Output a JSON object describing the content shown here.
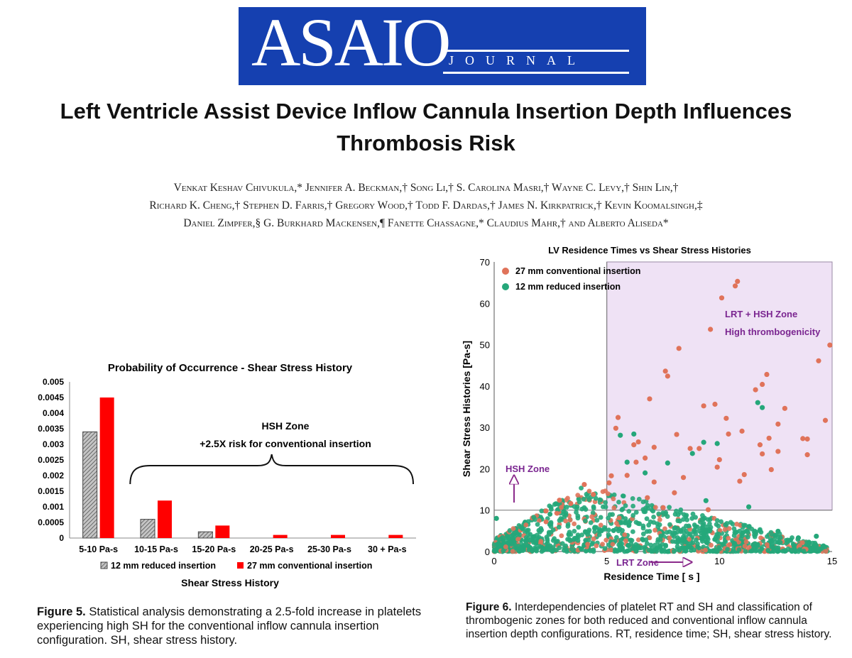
{
  "journal": {
    "logo_main": "ASAIO",
    "logo_sub": "JOURNAL"
  },
  "paper": {
    "title": "Left Ventricle Assist Device Inflow Cannula Insertion Depth Influences Thrombosis Risk",
    "authors": [
      "Venkat Keshav Chivukula,* Jennifer A. Beckman,† Song Li,† S. Carolina Masri,† Wayne C. Levy,† Shin Lin,†",
      "Richard K. Cheng,† Stephen D. Farris,† Gregory Wood,† Todd F. Dardas,† James N. Kirkpatrick,† Kevin Koomalsingh,‡",
      "Daniel Zimpfer,§ G. Burkhard Mackensen,¶ Fanette Chassagne,* Claudius Mahr,† and Alberto Aliseda*"
    ]
  },
  "figure5": {
    "caption_label": "Figure 5.",
    "caption_text": "Statistical analysis demonstrating a 2.5-fold increase in platelets experiencing high SH for the conventional inflow cannula insertion configuration. SH, shear stress history."
  },
  "figure6": {
    "caption_label": "Figure 6.",
    "caption_text": "Interdependencies of platelet RT and SH and classification of thrombogenic zones for both reduced and conventional inflow cannula insertion depth configurations. RT, residence time; SH, shear stress history."
  },
  "chart_data": [
    {
      "type": "bar",
      "title": "Probability of Occurrence - Shear Stress History",
      "xlabel": "Shear Stress History",
      "ylabel": "",
      "categories": [
        "5-10 Pa-s",
        "10-15 Pa-s",
        "15-20 Pa-s",
        "20-25 Pa-s",
        "25-30 Pa-s",
        "30 + Pa-s"
      ],
      "series": [
        {
          "name": "12 mm reduced insertion",
          "values": [
            0.0034,
            0.0006,
            0.0002,
            0,
            0,
            0
          ],
          "color": "#a8a8a8",
          "pattern": "diagonal-hatch"
        },
        {
          "name": "27 mm conventional insertion",
          "values": [
            0.0045,
            0.0012,
            0.0004,
            0.0001,
            0.0001,
            0.0001
          ],
          "color": "#ff0000"
        }
      ],
      "ylim": [
        0,
        0.005
      ],
      "yticks": [
        "0",
        "0.0005",
        "0.001",
        "0.0015",
        "0.002",
        "0.0025",
        "0.003",
        "0.0035",
        "0.004",
        "0.0045",
        "0.005"
      ],
      "legend_position": "bottom",
      "grid": false,
      "annotations": {
        "zone_title": "HSH Zone",
        "zone_text": "+2.5X risk for conventional insertion",
        "brace_span": [
          "10-15 Pa-s",
          "30 + Pa-s"
        ]
      }
    },
    {
      "type": "scatter",
      "title": "LV Residence Times vs Shear Stress Histories",
      "xlabel": "Residence Time [ s ]",
      "ylabel": "Shear Stress Histories [Pa-s]",
      "xlim": [
        0,
        15
      ],
      "ylim": [
        0,
        70
      ],
      "xticks": [
        0,
        5,
        10,
        15
      ],
      "yticks": [
        0,
        10,
        20,
        30,
        40,
        50,
        60,
        70
      ],
      "grid": false,
      "legend_position": "top-left",
      "series": [
        {
          "name": "27 mm conventional insertion",
          "color": "#e0735a",
          "points": [
            [
              10.8,
              65.3
            ],
            [
              10.7,
              64.2
            ],
            [
              10.1,
              61.3
            ],
            [
              14.9,
              49.9
            ],
            [
              9.6,
              53.7
            ],
            [
              8.2,
              49.1
            ],
            [
              14.4,
              46.1
            ],
            [
              7.6,
              43.6
            ],
            [
              7.7,
              42.4
            ],
            [
              6.9,
              36.9
            ],
            [
              12.1,
              42.8
            ],
            [
              11.6,
              39.1
            ],
            [
              11.9,
              40.4
            ],
            [
              12.9,
              34.6
            ],
            [
              9.8,
              35.6
            ],
            [
              9.3,
              35.2
            ],
            [
              10.3,
              32.2
            ],
            [
              12.6,
              30.8
            ],
            [
              11.0,
              29.1
            ],
            [
              8.1,
              28.3
            ],
            [
              6.4,
              26.5
            ],
            [
              6.2,
              25.8
            ],
            [
              5.5,
              32.4
            ],
            [
              5.4,
              29.8
            ],
            [
              7.1,
              25.2
            ],
            [
              12.2,
              27.4
            ],
            [
              13.7,
              27.3
            ],
            [
              10.4,
              28.4
            ],
            [
              11.8,
              25.8
            ],
            [
              14.7,
              31.7
            ],
            [
              13.9,
              27.2
            ],
            [
              6.7,
              22.6
            ],
            [
              8.7,
              24.9
            ],
            [
              9.9,
              20.4
            ],
            [
              5.9,
              18.4
            ],
            [
              6.3,
              21.6
            ],
            [
              8.4,
              17.9
            ],
            [
              10.9,
              17.0
            ],
            [
              11.1,
              18.6
            ],
            [
              12.3,
              19.8
            ],
            [
              13.9,
              23.4
            ],
            [
              8.0,
              14.2
            ],
            [
              5.1,
              16.6
            ],
            [
              5.2,
              18.3
            ],
            [
              9.1,
              24.9
            ],
            [
              10.0,
              22.2
            ],
            [
              11.9,
              23.6
            ],
            [
              12.6,
              24.2
            ],
            [
              6.8,
              13.0
            ],
            [
              7.5,
              10.6
            ],
            [
              9.5,
              10.1
            ],
            [
              4.4,
              13.8
            ],
            [
              4.0,
              16.2
            ],
            [
              3.4,
              11.6
            ],
            [
              2.9,
              12.4
            ],
            [
              2.3,
              9.8
            ],
            [
              7.1,
              16.8
            ]
          ]
        },
        {
          "name": "12 mm reduced insertion",
          "color": "#25a77a",
          "points": [
            [
              11.7,
              36.0
            ],
            [
              11.9,
              34.8
            ],
            [
              6.2,
              28.4
            ],
            [
              5.6,
              28.1
            ],
            [
              9.3,
              26.4
            ],
            [
              9.9,
              26.1
            ],
            [
              8.8,
              23.7
            ],
            [
              7.7,
              21.4
            ],
            [
              5.9,
              21.6
            ],
            [
              6.7,
              19.0
            ],
            [
              11.3,
              10.8
            ],
            [
              9.4,
              12.3
            ],
            [
              14.3,
              3.7
            ],
            [
              13.5,
              3.3
            ],
            [
              12.6,
              4.9
            ],
            [
              0.1,
              8.0
            ]
          ]
        }
      ],
      "annotations": {
        "zone_high_label": "LRT + HSH Zone",
        "zone_high_sublabel": "High thrombogenicity",
        "zone_hsh_label": "HSH Zone",
        "zone_lrt_label": "LRT Zone"
      }
    }
  ]
}
